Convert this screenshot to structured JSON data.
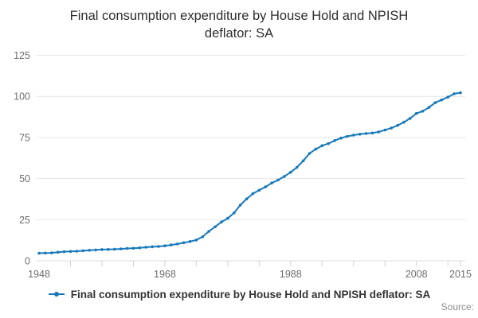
{
  "title_lines": [
    "Final consumption expenditure by House Hold and NPISH",
    "deflator: SA"
  ],
  "legend": {
    "label": "Final consumption expenditure by House Hold and NPISH deflator: SA"
  },
  "source": {
    "label": "Source:"
  },
  "colors": {
    "line": "#1779ba",
    "grid": "#e6e6e6",
    "axis_line": "#dcdce2",
    "tick": "#ccd0dd",
    "tick_label": "#6e6e6e",
    "title_text": "#2e2e2e",
    "legend_text": "#333333",
    "source_text": "#8c8c8c",
    "background": "#ffffff"
  },
  "chart_data": {
    "type": "line",
    "title": "Final consumption expenditure by House Hold and NPISH deflator: SA",
    "xlabel": "",
    "ylabel": "",
    "xlim": [
      1948,
      2015
    ],
    "ylim": [
      0,
      125
    ],
    "y_ticks": [
      0,
      25,
      50,
      75,
      100,
      125
    ],
    "x_tick_marks": [
      1953,
      1958,
      1963,
      1968,
      1973,
      1978,
      1983,
      1988,
      1993,
      1998,
      2003,
      2008,
      2013,
      2015
    ],
    "x_ticks_labeled": [
      1948,
      1968,
      1988,
      2008,
      2015
    ],
    "grid": "horizontal-only",
    "legend_position": "bottom",
    "marker": "circle",
    "series": [
      {
        "name": "Final consumption expenditure by House Hold and NPISH deflator: SA",
        "color": "#1779ba",
        "x": [
          1948,
          1949,
          1950,
          1951,
          1952,
          1953,
          1954,
          1955,
          1956,
          1957,
          1958,
          1959,
          1960,
          1961,
          1962,
          1963,
          1964,
          1965,
          1966,
          1967,
          1968,
          1969,
          1970,
          1971,
          1972,
          1973,
          1974,
          1975,
          1976,
          1977,
          1978,
          1979,
          1980,
          1981,
          1982,
          1983,
          1984,
          1985,
          1986,
          1987,
          1988,
          1989,
          1990,
          1991,
          1992,
          1993,
          1994,
          1995,
          1996,
          1997,
          1998,
          1999,
          2000,
          2001,
          2002,
          2003,
          2004,
          2005,
          2006,
          2007,
          2008,
          2009,
          2010,
          2011,
          2012,
          2013,
          2014,
          2015
        ],
        "values": [
          4.6,
          4.7,
          4.8,
          5.2,
          5.5,
          5.7,
          5.8,
          6.1,
          6.4,
          6.6,
          6.8,
          6.9,
          7.0,
          7.2,
          7.5,
          7.6,
          7.9,
          8.2,
          8.5,
          8.7,
          9.1,
          9.6,
          10.2,
          11.0,
          11.7,
          12.6,
          14.6,
          17.9,
          20.7,
          23.6,
          25.8,
          29.1,
          33.9,
          37.6,
          40.8,
          42.9,
          44.9,
          47.3,
          49.1,
          51.3,
          53.8,
          56.8,
          60.8,
          65.3,
          67.9,
          70.0,
          71.3,
          73.1,
          74.6,
          75.7,
          76.4,
          77.0,
          77.4,
          77.7,
          78.4,
          79.5,
          80.7,
          82.3,
          84.3,
          86.6,
          89.6,
          91.0,
          93.3,
          96.2,
          97.8,
          99.5,
          101.6,
          102.2
        ]
      }
    ]
  }
}
